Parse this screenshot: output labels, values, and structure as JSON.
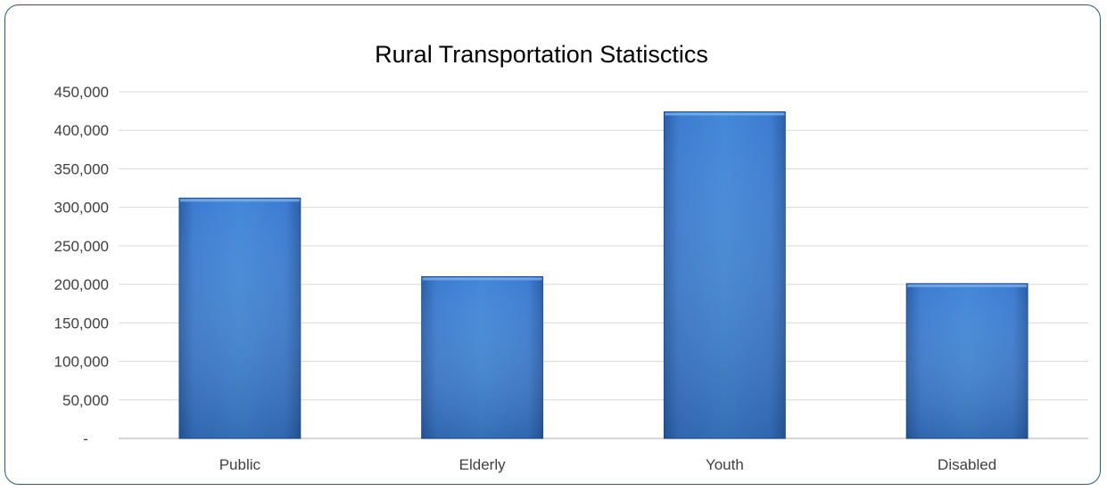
{
  "chart_data": {
    "type": "bar",
    "title": "Rural Transportation Statisctics",
    "categories": [
      "Public",
      "Elderly",
      "Youth",
      "Disabled"
    ],
    "values": [
      312000,
      210000,
      424000,
      201000
    ],
    "ylim": [
      0,
      450000
    ],
    "yticks": [
      0,
      50000,
      100000,
      150000,
      200000,
      250000,
      300000,
      350000,
      400000,
      450000
    ],
    "ytick_labels": [
      "-",
      "50,000",
      "100,000",
      "150,000",
      "200,000",
      "250,000",
      "300,000",
      "350,000",
      "400,000",
      "450,000"
    ],
    "xlabel": "",
    "ylabel": "",
    "grid": true,
    "legend": "none",
    "bar_color": "#3c78c8"
  }
}
